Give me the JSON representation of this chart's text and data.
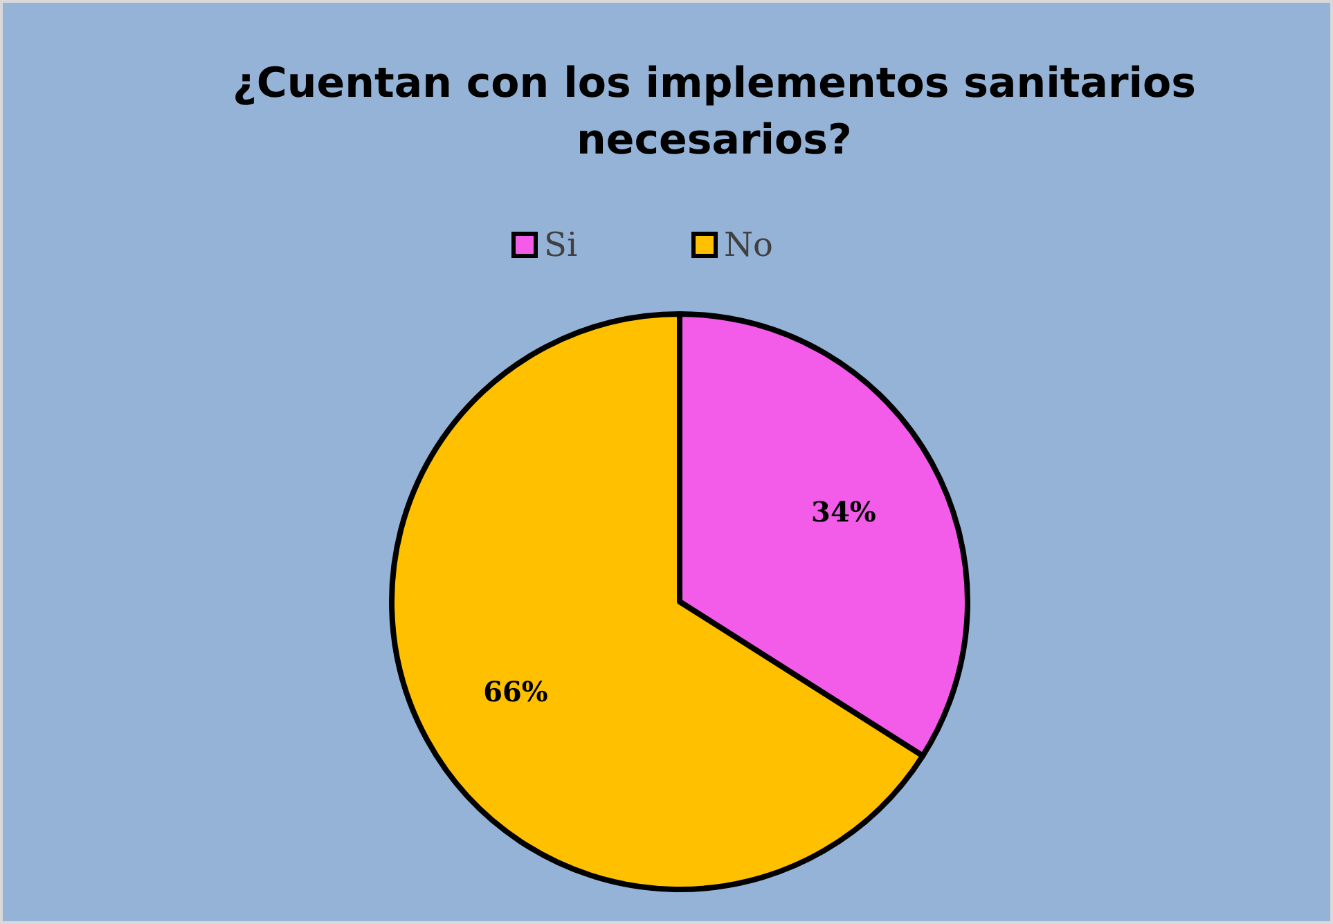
{
  "chart_data": {
    "type": "pie",
    "title": "¿Cuentan con los implementos sanitarios necesarios?",
    "categories": [
      "Si",
      "No"
    ],
    "values": [
      34,
      66
    ],
    "colors": [
      "#f35ce8",
      "#ffc000"
    ],
    "value_labels": [
      "34%",
      "66%"
    ],
    "legend": "top"
  }
}
